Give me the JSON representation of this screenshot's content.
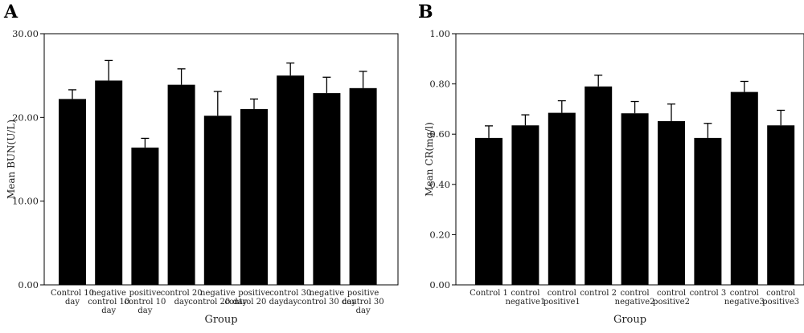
{
  "chart_data": [
    {
      "type": "bar",
      "panel_label": "A",
      "categories": [
        [
          "Control 10",
          "day"
        ],
        [
          "negative",
          "control 10",
          "day"
        ],
        [
          "positive",
          "control 10",
          "day"
        ],
        [
          "control 20",
          "day"
        ],
        [
          "negative",
          "control 20 day"
        ],
        [
          "positive",
          "control 20 day"
        ],
        [
          "control 30",
          "day"
        ],
        [
          "negative",
          "control 30 day"
        ],
        [
          "positive",
          "control 30",
          "day"
        ]
      ],
      "values": [
        22.2,
        24.4,
        16.4,
        23.9,
        20.2,
        21.0,
        25.0,
        22.9,
        23.5
      ],
      "errors": [
        1.1,
        2.4,
        1.1,
        1.9,
        2.9,
        1.2,
        1.5,
        1.9,
        2.0
      ],
      "xlabel": "Group",
      "ylabel": "Mean BUN(U/L)",
      "ylim": [
        0,
        30
      ],
      "yticks": [
        "0.00",
        "10.00",
        "20.00",
        "30.00"
      ],
      "ytick_values": [
        0,
        10,
        20,
        30
      ],
      "bar_color": "#000000",
      "grid": false
    },
    {
      "type": "bar",
      "panel_label": "B",
      "categories": [
        [
          "Control 1"
        ],
        [
          "control",
          "negative1"
        ],
        [
          "control",
          "positive1"
        ],
        [
          "control 2"
        ],
        [
          "control",
          "negative2"
        ],
        [
          "control",
          "positive2"
        ],
        [
          "control 3"
        ],
        [
          "control",
          "negative3"
        ],
        [
          "control",
          "positive3"
        ]
      ],
      "values": [
        0.585,
        0.635,
        0.685,
        0.79,
        0.683,
        0.652,
        0.585,
        0.768,
        0.635
      ],
      "errors": [
        0.048,
        0.042,
        0.048,
        0.045,
        0.047,
        0.068,
        0.058,
        0.042,
        0.06
      ],
      "xlabel": "Group",
      "ylabel": "Mean CR(mg/l)",
      "ylim": [
        0,
        1
      ],
      "yticks": [
        "0.00",
        "0.20",
        "0.40",
        "0.60",
        "0.80",
        "1.00"
      ],
      "ytick_values": [
        0,
        0.2,
        0.4,
        0.6,
        0.8,
        1.0
      ],
      "bar_color": "#000000",
      "grid": false
    }
  ]
}
